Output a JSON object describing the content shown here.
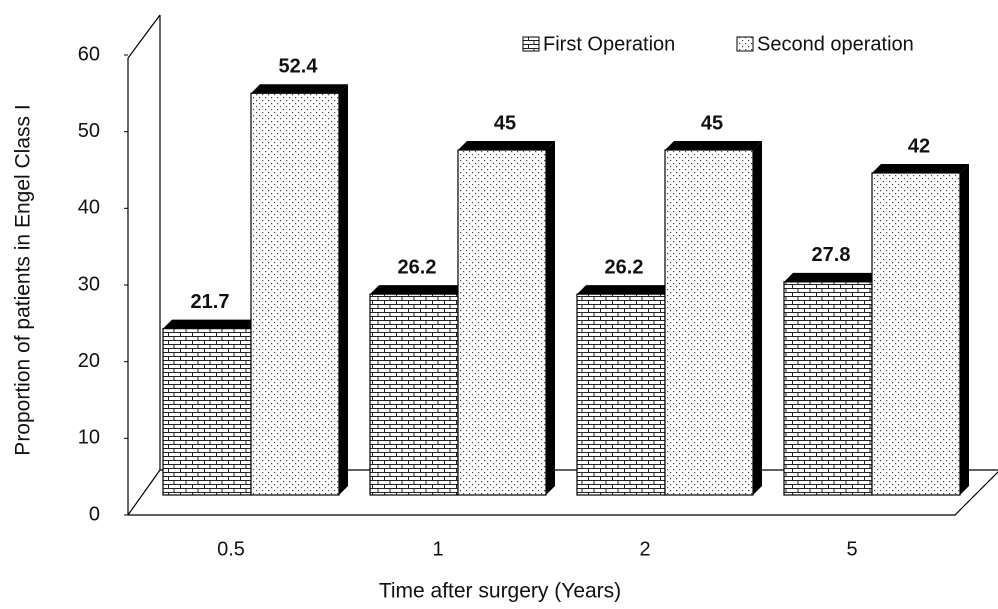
{
  "chart_data": {
    "type": "bar3d",
    "x_label": "Time after surgery (Years)",
    "y_label": "Proportion of patients in Engel Class I",
    "categories": [
      "0.5",
      "1",
      "2",
      "5"
    ],
    "series": [
      {
        "name": "First Operation",
        "pattern": "brick",
        "values": [
          21.7,
          26.2,
          26.2,
          27.8
        ]
      },
      {
        "name": "Second operation",
        "pattern": "dots",
        "values": [
          52.4,
          45,
          45,
          42
        ]
      }
    ],
    "ylim": [
      0,
      60
    ],
    "yticks": [
      0,
      10,
      20,
      30,
      40,
      50,
      60
    ],
    "legend": "top-right"
  }
}
